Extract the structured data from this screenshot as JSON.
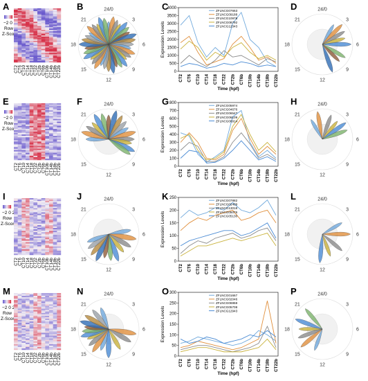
{
  "palette": {
    "heat_low": "#6a5acd",
    "heat_mid": "#f2eef4",
    "heat_high": "#d7334a",
    "series_colors": [
      "#6fa8dc",
      "#e08f3c",
      "#8b8b8b",
      "#c9b23b",
      "#4a8bd4",
      "#7cb36b",
      "#8e5b3a",
      "#2f6db5",
      "#b58a3e",
      "#9aa0a6"
    ]
  },
  "common": {
    "timepoints": [
      "CT2",
      "CT6",
      "CT10",
      "CT14",
      "CT18",
      "CT22",
      "CT2b",
      "CT6b",
      "CT10b",
      "CT14b",
      "CT18b",
      "CT22b"
    ],
    "legend_scale": "−2 0 2",
    "legend_row": "Row",
    "legend_z": "Z-Score",
    "clock": {
      "top": "24/0",
      "right": "6",
      "bottom": "12",
      "left": "18",
      "c3": "3",
      "c9": "9",
      "c15": "15",
      "c21": "21"
    },
    "line_xlabel": "Time (hpf)",
    "line_ylabel": "Expression Levels"
  },
  "rows": [
    {
      "heat_letter": "A",
      "rose_letter": "B",
      "line_letter": "C",
      "rose2_letter": "D",
      "rose_petals": [
        0,
        10,
        20,
        30,
        40,
        50,
        60,
        70,
        80,
        90,
        100,
        110,
        120,
        130,
        140,
        150,
        160,
        170,
        180,
        190,
        200,
        210,
        220,
        230,
        240,
        250,
        260,
        270,
        280,
        290,
        300,
        310,
        320,
        330,
        340,
        350
      ],
      "rose2_petals": [
        30,
        45,
        60,
        75,
        90,
        120,
        135,
        160
      ],
      "chart_data": {
        "type": "line",
        "title": "",
        "xlabel": "Time (hpf)",
        "ylabel": "Expression Levels",
        "categories": [
          "CT2",
          "CT6",
          "CT10",
          "CT14",
          "CT18",
          "CT22",
          "CT2b",
          "CT6b",
          "CT10b",
          "CT14b",
          "CT18b",
          "CT22b"
        ],
        "ylim": [
          0,
          4000
        ],
        "yticks": [
          0,
          500,
          1000,
          1500,
          2000,
          2500,
          3000,
          3500,
          4000
        ],
        "series": [
          {
            "name": "ZFLNCG07663",
            "values": [
              2900,
              3500,
              1800,
              900,
              1500,
              1000,
              3000,
              3700,
              2000,
              1500,
              600,
              300
            ]
          },
          {
            "name": "ZFLNCG09188",
            "values": [
              1800,
              2200,
              1200,
              400,
              600,
              800,
              1700,
              2200,
              1500,
              700,
              900,
              500
            ]
          },
          {
            "name": "ZFLNCG10978",
            "values": [
              500,
              1000,
              600,
              300,
              700,
              1300,
              900,
              1000,
              700,
              400,
              800,
              600
            ]
          },
          {
            "name": "ZFLNCG08792",
            "values": [
              1400,
              1900,
              1500,
              700,
              1200,
              900,
              1500,
              1800,
              1200,
              800,
              1000,
              700
            ]
          },
          {
            "name": "ZFLNCG12343",
            "values": [
              300,
              500,
              400,
              200,
              300,
              500,
              400,
              600,
              500,
              300,
              400,
              300
            ]
          }
        ]
      }
    },
    {
      "heat_letter": "E",
      "rose_letter": "F",
      "line_letter": "G",
      "rose2_letter": "H",
      "rose_petals": [
        270,
        285,
        300,
        315,
        330,
        345,
        0,
        15,
        30,
        45,
        60,
        75,
        90,
        100,
        115,
        125
      ],
      "rose2_petals": [
        330,
        350,
        20,
        40,
        55,
        70
      ],
      "chart_data": {
        "type": "line",
        "title": "",
        "xlabel": "Time (hpf)",
        "ylabel": "Expression Levels",
        "categories": [
          "CT2",
          "CT6",
          "CT10",
          "CT14",
          "CT18",
          "CT22",
          "CT2b",
          "CT6b",
          "CT10b",
          "CT14b",
          "CT18b",
          "CT22b"
        ],
        "ylim": [
          0,
          800
        ],
        "yticks": [
          0,
          100,
          200,
          300,
          400,
          500,
          600,
          700,
          800
        ],
        "series": [
          {
            "name": "ZFLNCG05974",
            "values": [
              420,
              380,
              150,
              50,
              120,
              200,
              620,
              700,
              300,
              120,
              200,
              100
            ]
          },
          {
            "name": "ZFLNCG04676",
            "values": [
              300,
              420,
              300,
              100,
              80,
              150,
              450,
              600,
              350,
              150,
              250,
              150
            ]
          },
          {
            "name": "ZFLNCG06547",
            "values": [
              200,
              300,
              250,
              60,
              60,
              120,
              300,
              420,
              280,
              100,
              150,
              80
            ]
          },
          {
            "name": "ZFLNCG06109",
            "values": [
              350,
              400,
              200,
              80,
              100,
              180,
              500,
              650,
              400,
              200,
              300,
              180
            ]
          },
          {
            "name": "ZFLNCG06914",
            "values": [
              100,
              200,
              180,
              40,
              50,
              100,
              200,
              320,
              200,
              80,
              120,
              60
            ]
          }
        ]
      }
    },
    {
      "heat_letter": "I",
      "rose_letter": "J",
      "line_letter": "K",
      "rose2_letter": "L",
      "rose_petals": [
        80,
        100,
        120,
        140,
        160,
        175,
        190,
        205,
        220,
        235,
        250
      ],
      "rose2_petals": [
        60,
        90,
        130,
        160,
        185
      ],
      "chart_data": {
        "type": "line",
        "title": "",
        "xlabel": "Time (hpf)",
        "ylabel": "Expression Levels",
        "categories": [
          "CT2",
          "CT6",
          "CT10",
          "CT14",
          "CT18",
          "CT22",
          "CT2b",
          "CT6b",
          "CT10b",
          "CT14b",
          "CT18b",
          "CT22b"
        ],
        "ylim": [
          0,
          250
        ],
        "yticks": [
          0,
          50,
          100,
          150,
          200,
          250
        ],
        "series": [
          {
            "name": "ZFLNCG07882",
            "values": [
              170,
              200,
              180,
              190,
              210,
              200,
              230,
              200,
              190,
              210,
              240,
              180
            ]
          },
          {
            "name": "ZFLNCG02409",
            "values": [
              120,
              150,
              170,
              160,
              180,
              190,
              200,
              160,
              170,
              190,
              200,
              150
            ]
          },
          {
            "name": "ZFLNCG13018",
            "values": [
              30,
              60,
              80,
              70,
              90,
              100,
              110,
              90,
              100,
              120,
              130,
              80
            ]
          },
          {
            "name": "ZFLNCG05076",
            "values": [
              20,
              40,
              60,
              60,
              70,
              80,
              90,
              80,
              90,
              100,
              110,
              60
            ]
          },
          {
            "name": "ZFLNCG05130",
            "values": [
              60,
              80,
              90,
              100,
              110,
              120,
              120,
              100,
              110,
              130,
              150,
              90
            ]
          }
        ]
      }
    },
    {
      "heat_letter": "M",
      "rose_letter": "N",
      "line_letter": "O",
      "rose2_letter": "P",
      "rose_petals": [
        200,
        215,
        230,
        245,
        255,
        265,
        275,
        285,
        300,
        320,
        340,
        100,
        120,
        150,
        180
      ],
      "rose2_petals": [
        200,
        230,
        250,
        270,
        290,
        320
      ],
      "chart_data": {
        "type": "line",
        "title": "",
        "xlabel": "Time (hpf)",
        "ylabel": "Expression Levels",
        "categories": [
          "CT2",
          "CT6",
          "CT10",
          "CT14",
          "CT18",
          "CT22",
          "CT2b",
          "CT6b",
          "CT10b",
          "CT14b",
          "CT18b",
          "CT22b"
        ],
        "ylim": [
          0,
          300
        ],
        "yticks": [
          0,
          50,
          100,
          150,
          200,
          250,
          300
        ],
        "series": [
          {
            "name": "ZFLNCG01667",
            "values": [
              60,
              70,
              90,
              80,
              70,
              60,
              50,
              60,
              80,
              120,
              100,
              70
            ]
          },
          {
            "name": "ZFLNCG02046",
            "values": [
              40,
              50,
              70,
              60,
              50,
              40,
              30,
              40,
              60,
              80,
              260,
              60
            ]
          },
          {
            "name": "ZFLNCG06959",
            "values": [
              30,
              40,
              50,
              50,
              40,
              30,
              20,
              30,
              40,
              60,
              140,
              40
            ]
          },
          {
            "name": "ZFLNCG05708",
            "values": [
              20,
              30,
              40,
              40,
              30,
              20,
              20,
              20,
              30,
              40,
              80,
              30
            ]
          },
          {
            "name": "ZFLNCG12943",
            "values": [
              80,
              60,
              70,
              90,
              80,
              60,
              70,
              80,
              100,
              90,
              120,
              90
            ]
          }
        ]
      }
    }
  ]
}
